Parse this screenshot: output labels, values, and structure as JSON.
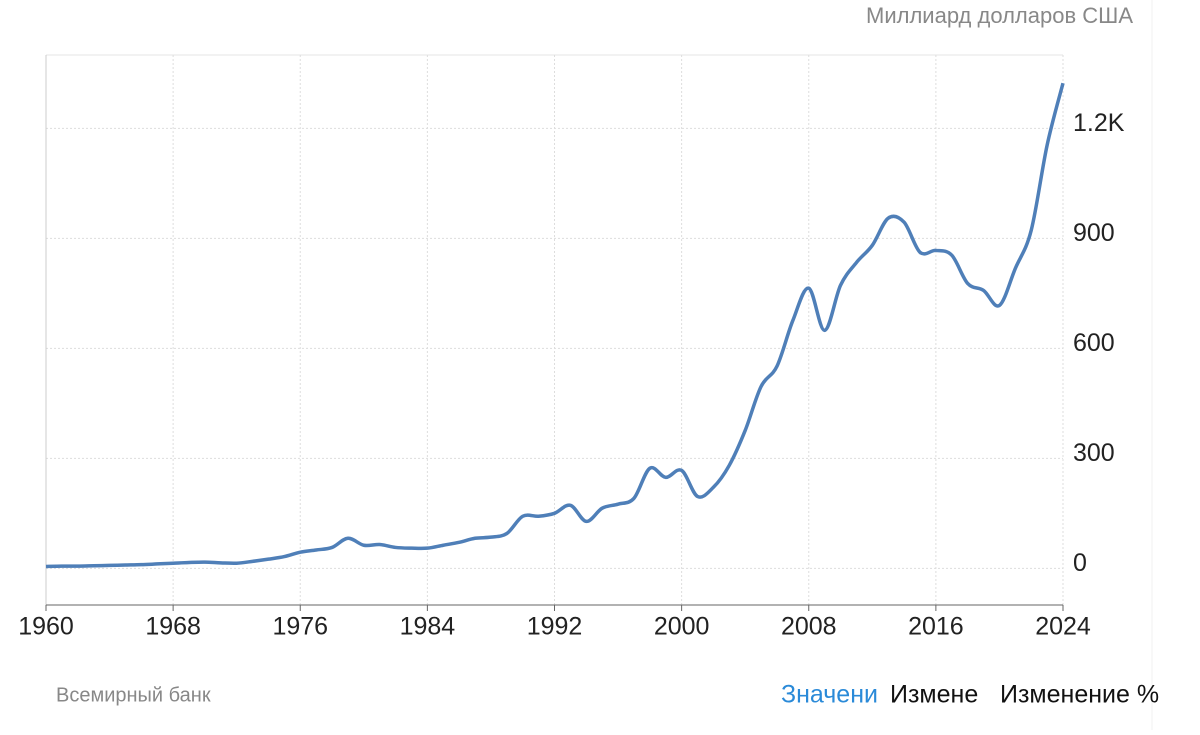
{
  "chart_data": {
    "type": "line",
    "unit_label": "Миллиард долларов США",
    "source": "Всемирный банк",
    "tabs": [
      "Значени",
      "Измене",
      "Изменение %"
    ],
    "x": [
      1960,
      1961,
      1962,
      1963,
      1964,
      1965,
      1966,
      1967,
      1968,
      1969,
      1970,
      1971,
      1972,
      1973,
      1974,
      1975,
      1976,
      1977,
      1978,
      1979,
      1980,
      1981,
      1982,
      1983,
      1984,
      1985,
      1986,
      1987,
      1988,
      1989,
      1990,
      1991,
      1992,
      1993,
      1994,
      1995,
      1996,
      1997,
      1998,
      1999,
      2000,
      2001,
      2002,
      2003,
      2004,
      2005,
      2006,
      2007,
      2008,
      2009,
      2010,
      2011,
      2012,
      2013,
      2014,
      2015,
      2016,
      2017,
      2018,
      2019,
      2020,
      2021,
      2022,
      2023,
      2024
    ],
    "series": [
      {
        "color": "#4f7fb8",
        "values": [
          5,
          6,
          6,
          7,
          8,
          9,
          10,
          12,
          14,
          16,
          17,
          15,
          14,
          19,
          25,
          32,
          44,
          50,
          57,
          82,
          63,
          65,
          57,
          55,
          55,
          63,
          71,
          82,
          85,
          95,
          142,
          142,
          150,
          172,
          128,
          164,
          175,
          191,
          273,
          248,
          267,
          196,
          221,
          281,
          376,
          496,
          551,
          676,
          764,
          649,
          772,
          834,
          881,
          955,
          944,
          862,
          867,
          854,
          777,
          758,
          717,
          818,
          922,
          1154,
          1323
        ]
      }
    ],
    "xlim": [
      1960,
      2024
    ],
    "xticks": [
      1960,
      1968,
      1976,
      1984,
      1992,
      2000,
      2008,
      2016,
      2024
    ],
    "ylim": [
      -100,
      1400
    ],
    "yticks": [
      0,
      300,
      600,
      900,
      {
        "value": 1200,
        "label": "1.2K"
      }
    ],
    "grid": true
  }
}
